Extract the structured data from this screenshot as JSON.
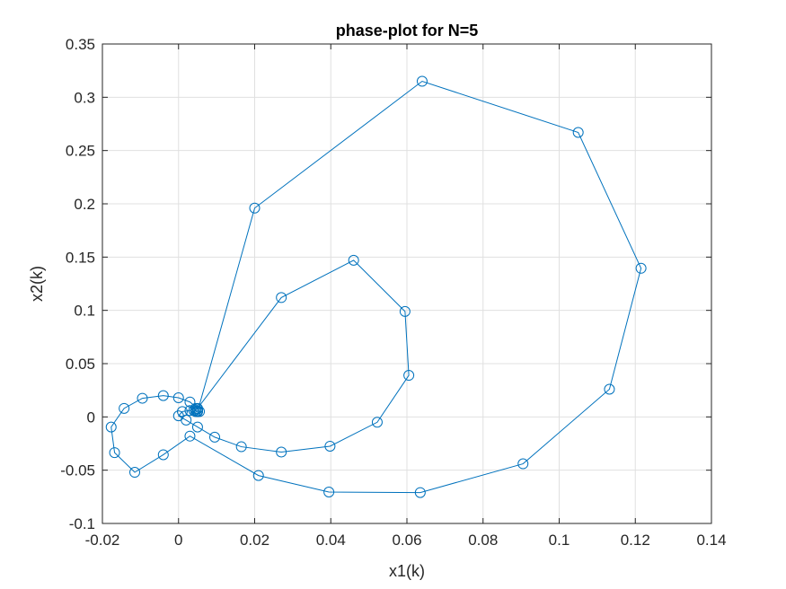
{
  "chart_data": {
    "type": "line",
    "title": "phase-plot for N=5",
    "xlabel": "x1(k)",
    "ylabel": "x2(k)",
    "xlim": [
      -0.02,
      0.14
    ],
    "ylim": [
      -0.1,
      0.35
    ],
    "xticks": [
      "-0.02",
      "0",
      "0.02",
      "0.04",
      "0.06",
      "0.08",
      "0.1",
      "0.12",
      "0.14"
    ],
    "yticks": [
      "-0.1",
      "-0.05",
      "0",
      "0.05",
      "0.1",
      "0.15",
      "0.2",
      "0.25",
      "0.3",
      "0.35"
    ],
    "grid": true,
    "marker": "circle",
    "line_color": "#0072BD",
    "series": [
      {
        "x": [
          0.005,
          0.02,
          0.064,
          0.105,
          0.1215,
          0.1132,
          0.0905,
          0.0635,
          0.0395,
          0.021,
          0.003,
          -0.004,
          -0.0115,
          -0.0168,
          -0.0177,
          -0.0143,
          -0.0095,
          -0.004,
          0.0,
          0.003,
          0.005,
          0.027,
          0.046,
          0.0595,
          0.0605,
          0.0522,
          0.0398,
          0.027,
          0.0165,
          0.0095,
          0.005,
          0.002,
          0.0,
          0.001,
          0.003,
          0.0045,
          0.005,
          0.0045,
          0.004,
          0.005,
          0.0055,
          0.005,
          0.0045,
          0.005
        ],
        "y": [
          0.005,
          0.196,
          0.315,
          0.267,
          0.1395,
          0.026,
          -0.044,
          -0.071,
          -0.0705,
          -0.055,
          -0.018,
          -0.0355,
          -0.052,
          -0.0335,
          -0.0095,
          0.008,
          0.0175,
          0.02,
          0.018,
          0.014,
          0.008,
          0.112,
          0.147,
          0.099,
          0.039,
          -0.005,
          -0.0275,
          -0.033,
          -0.028,
          -0.019,
          -0.0095,
          -0.003,
          0.001,
          0.005,
          0.006,
          0.008,
          0.0075,
          0.0065,
          0.006,
          0.0055,
          0.005,
          0.0055,
          0.005,
          0.005
        ]
      }
    ]
  }
}
